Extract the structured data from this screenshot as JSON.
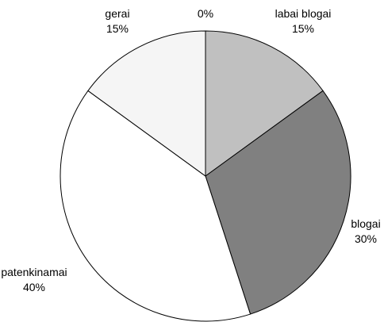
{
  "chart_data": {
    "type": "pie",
    "slices": [
      {
        "label": "labai blogai",
        "value": 15,
        "value_label": "15%",
        "color": "#c0c0c0"
      },
      {
        "label": "blogai",
        "value": 30,
        "value_label": "30%",
        "color": "#808080"
      },
      {
        "label": "patenkinamai",
        "value": 40,
        "value_label": "40%",
        "color": "#ffffff"
      },
      {
        "label": "gerai",
        "value": 15,
        "value_label": "15%",
        "color": "#f5f5f5"
      },
      {
        "label": "",
        "value": 0,
        "value_label": "0%",
        "color": "#000000"
      }
    ],
    "start": "12 o'clock",
    "direction": "clockwise",
    "legend": "none"
  }
}
